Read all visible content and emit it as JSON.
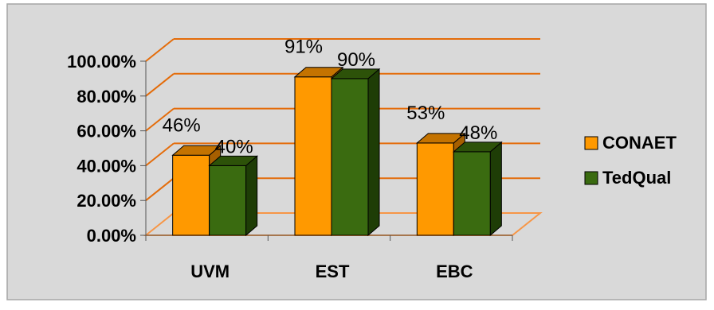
{
  "chart_data": {
    "type": "bar",
    "categories": [
      "UVM",
      "EST",
      "EBC"
    ],
    "series": [
      {
        "name": "CONAET",
        "values": [
          46,
          91,
          53
        ],
        "labels": [
          "46%",
          "91%",
          "53%"
        ]
      },
      {
        "name": "TedQual",
        "values": [
          40,
          90,
          48
        ],
        "labels": [
          "40%",
          "90%",
          "48%"
        ]
      }
    ],
    "yticks": [
      "0.00%",
      "20.00%",
      "40.00%",
      "60.00%",
      "80.00%",
      "100.00%"
    ],
    "ylim": [
      0,
      100
    ],
    "grid": true,
    "legend_position": "right",
    "three_d": true
  },
  "colors": {
    "background": "#d9d9d9",
    "border": "#a6a6a6",
    "gridline": "#e46c0a",
    "floor": "#f79646",
    "axis": "#555555",
    "CONAET_front": "#ff9900",
    "CONAET_side": "#a65f00",
    "CONAET_top": "#c47300",
    "TedQual_front": "#3a6b10",
    "TedQual_side": "#1e3d06",
    "TedQual_top": "#2d5209",
    "text": "#000000"
  }
}
